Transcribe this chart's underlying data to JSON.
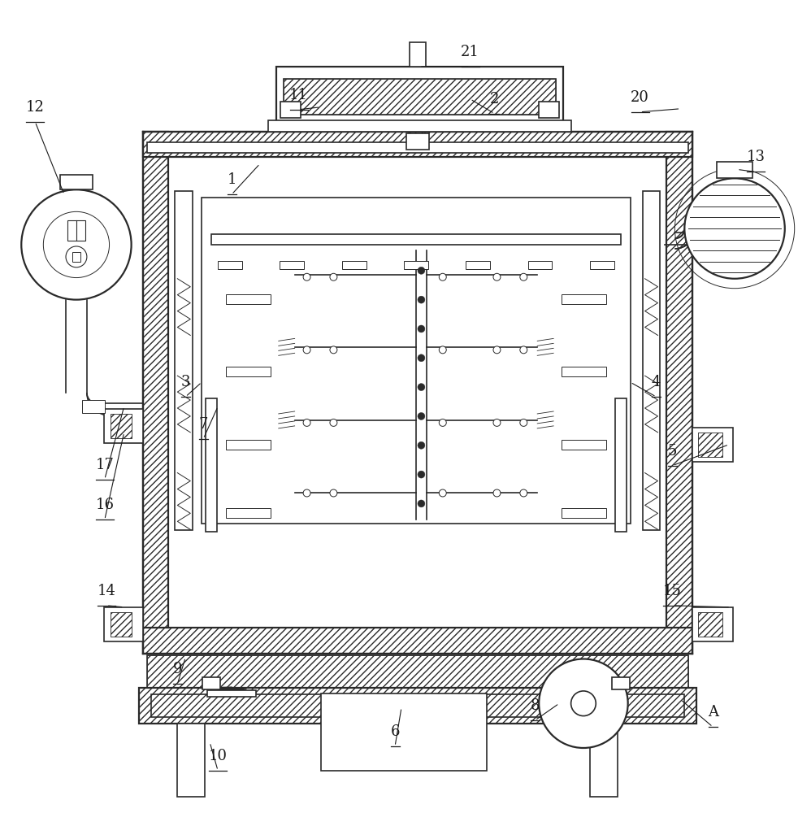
{
  "bg_color": "#ffffff",
  "lc": "#2a2a2a",
  "figsize": [
    9.98,
    10.0
  ],
  "dpi": 100,
  "lw": 1.2,
  "lw2": 1.6,
  "lw_thin": 0.7
}
